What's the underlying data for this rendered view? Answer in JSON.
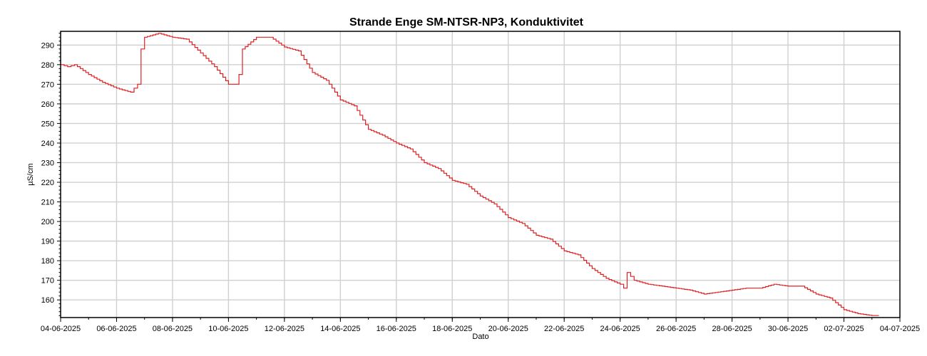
{
  "chart_data": {
    "type": "line",
    "title": "Strande Enge SM-NTSR-NP3, Konduktivitet",
    "xlabel": "Dato",
    "ylabel": "µS/cm",
    "xlim": [
      "04-06-2025",
      "04-07-2025"
    ],
    "ylim": [
      151,
      297
    ],
    "x_ticks": [
      "04-06-2025",
      "06-06-2025",
      "08-06-2025",
      "10-06-2025",
      "12-06-2025",
      "14-06-2025",
      "16-06-2025",
      "18-06-2025",
      "20-06-2025",
      "22-06-2025",
      "24-06-2025",
      "26-06-2025",
      "28-06-2025",
      "30-06-2025",
      "02-07-2025",
      "04-07-2025"
    ],
    "y_ticks": [
      160,
      170,
      180,
      190,
      200,
      210,
      220,
      230,
      240,
      250,
      260,
      270,
      280,
      290
    ],
    "grid": true,
    "series": [
      {
        "color": "#e02020",
        "x": [
          "04-06-2025 00:00",
          "04-06-2025 06:00",
          "04-06-2025 12:00",
          "05-06-2025 00:00",
          "05-06-2025 12:00",
          "06-06-2025 00:00",
          "06-06-2025 12:00",
          "06-06-2025 18:00",
          "06-06-2025 21:00",
          "07-06-2025 00:00",
          "07-06-2025 12:00",
          "08-06-2025 00:00",
          "08-06-2025 12:00",
          "09-06-2025 00:00",
          "09-06-2025 12:00",
          "10-06-2025 00:00",
          "10-06-2025 06:00",
          "10-06-2025 09:00",
          "10-06-2025 12:00",
          "11-06-2025 00:00",
          "11-06-2025 12:00",
          "12-06-2025 00:00",
          "12-06-2025 12:00",
          "13-06-2025 00:00",
          "13-06-2025 12:00",
          "14-06-2025 00:00",
          "14-06-2025 12:00",
          "15-06-2025 00:00",
          "15-06-2025 12:00",
          "16-06-2025 00:00",
          "16-06-2025 12:00",
          "17-06-2025 00:00",
          "17-06-2025 12:00",
          "18-06-2025 00:00",
          "18-06-2025 12:00",
          "19-06-2025 00:00",
          "19-06-2025 12:00",
          "20-06-2025 00:00",
          "20-06-2025 12:00",
          "21-06-2025 00:00",
          "21-06-2025 12:00",
          "22-06-2025 00:00",
          "22-06-2025 12:00",
          "23-06-2025 00:00",
          "23-06-2025 12:00",
          "24-06-2025 00:00",
          "24-06-2025 03:00",
          "24-06-2025 06:00",
          "24-06-2025 12:00",
          "25-06-2025 00:00",
          "25-06-2025 12:00",
          "26-06-2025 00:00",
          "26-06-2025 12:00",
          "27-06-2025 00:00",
          "27-06-2025 12:00",
          "28-06-2025 00:00",
          "28-06-2025 12:00",
          "29-06-2025 00:00",
          "29-06-2025 12:00",
          "30-06-2025 00:00",
          "30-06-2025 12:00",
          "01-07-2025 00:00",
          "01-07-2025 12:00",
          "02-07-2025 00:00",
          "02-07-2025 12:00",
          "03-07-2025 00:00",
          "03-07-2025 06:00"
        ],
        "values": [
          280,
          279,
          280,
          275,
          271,
          268,
          266,
          270,
          288,
          294,
          296,
          294,
          293,
          286,
          279,
          270,
          270,
          275,
          288,
          294,
          294,
          289,
          287,
          276,
          272,
          262,
          259,
          247,
          244,
          240,
          237,
          230,
          227,
          221,
          219,
          213,
          209,
          202,
          199,
          193,
          191,
          185,
          183,
          176,
          171,
          168,
          166,
          174,
          170,
          168,
          167,
          166,
          165,
          163,
          164,
          165,
          166,
          166,
          168,
          167,
          167,
          163,
          161,
          155,
          153,
          152,
          152
        ]
      }
    ]
  }
}
